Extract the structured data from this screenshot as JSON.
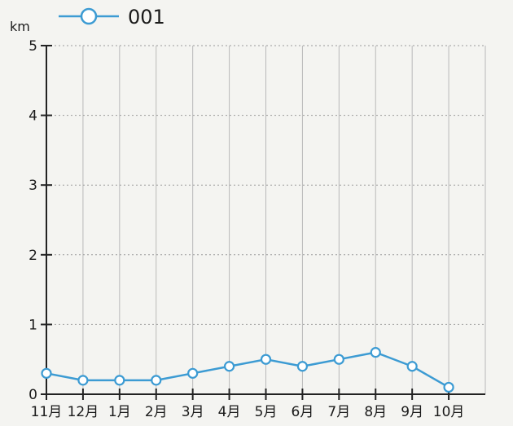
{
  "chart_data": {
    "type": "line",
    "ylabel": "km",
    "ylim": [
      0,
      5
    ],
    "yticks": [
      0,
      1,
      2,
      3,
      4,
      5
    ],
    "categories": [
      "11月",
      "12月",
      "1月",
      "2月",
      "3月",
      "4月",
      "5月",
      "6月",
      "7月",
      "8月",
      "9月",
      "10月"
    ],
    "series": [
      {
        "name": "001",
        "values": [
          0.3,
          0.2,
          0.2,
          0.2,
          0.3,
          0.4,
          0.5,
          0.4,
          0.5,
          0.6,
          0.4,
          0.1
        ],
        "color": "#3c9bd3",
        "marker": "open-circle"
      }
    ],
    "grid": true,
    "legend": "top-left"
  }
}
